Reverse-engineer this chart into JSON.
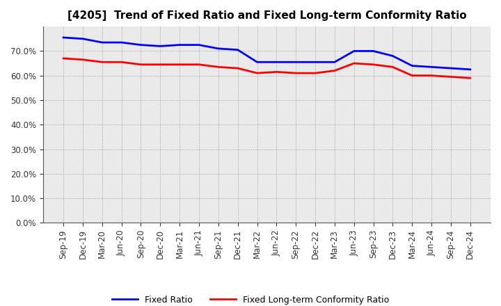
{
  "title": "[4205]  Trend of Fixed Ratio and Fixed Long-term Conformity Ratio",
  "x_labels": [
    "Sep-19",
    "Dec-19",
    "Mar-20",
    "Jun-20",
    "Sep-20",
    "Dec-20",
    "Mar-21",
    "Jun-21",
    "Sep-21",
    "Dec-21",
    "Mar-22",
    "Jun-22",
    "Sep-22",
    "Dec-22",
    "Mar-23",
    "Jun-23",
    "Sep-23",
    "Dec-23",
    "Mar-24",
    "Jun-24",
    "Sep-24",
    "Dec-24"
  ],
  "fixed_ratio": [
    75.5,
    75.0,
    73.5,
    73.5,
    72.5,
    72.0,
    72.5,
    72.5,
    71.0,
    70.5,
    65.5,
    65.5,
    65.5,
    65.5,
    65.5,
    70.0,
    70.0,
    68.0,
    64.0,
    63.5,
    63.0,
    62.5
  ],
  "fixed_lt_ratio": [
    67.0,
    66.5,
    65.5,
    65.5,
    64.5,
    64.5,
    64.5,
    64.5,
    63.5,
    63.0,
    61.0,
    61.5,
    61.0,
    61.0,
    62.0,
    65.0,
    64.5,
    63.5,
    60.0,
    60.0,
    59.5,
    59.0
  ],
  "fixed_ratio_color": "#0000FF",
  "fixed_lt_ratio_color": "#FF0000",
  "ylim": [
    0,
    80
  ],
  "yticks": [
    0,
    10,
    20,
    30,
    40,
    50,
    60,
    70
  ],
  "background_color": "#FFFFFF",
  "plot_bg_color": "#EAEAEA",
  "grid_color": "#888888",
  "legend_fixed": "Fixed Ratio",
  "legend_lt": "Fixed Long-term Conformity Ratio",
  "line_width": 2.0,
  "title_fontsize": 11,
  "tick_fontsize": 8.5,
  "legend_fontsize": 9
}
